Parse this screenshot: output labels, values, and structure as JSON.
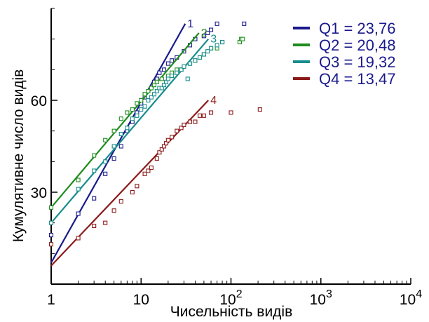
{
  "chart_data": {
    "type": "scatter",
    "title": "",
    "xlabel": "Чисельність видів",
    "ylabel": "Кумулятивне число видів",
    "x_scale": "log",
    "xlim": [
      1,
      10000
    ],
    "ylim": [
      0,
      90
    ],
    "x_ticks": [
      {
        "value": 1,
        "base": "1",
        "exp": ""
      },
      {
        "value": 10,
        "base": "10",
        "exp": ""
      },
      {
        "value": 100,
        "base": "10",
        "exp": "2"
      },
      {
        "value": 1000,
        "base": "10",
        "exp": "3"
      },
      {
        "value": 10000,
        "base": "10",
        "exp": "4"
      }
    ],
    "y_ticks": [
      30,
      60
    ],
    "legend": {
      "position": "top-right",
      "entries": [
        {
          "label": "Q1 = 23,76",
          "color": "#1a1a8c"
        },
        {
          "label": "Q2 = 20,48",
          "color": "#1e8c1e"
        },
        {
          "label": "Q3 = 19,32",
          "color": "#188c8c"
        },
        {
          "label": "Q4 = 13,47",
          "color": "#8c1a1a"
        }
      ]
    },
    "series": [
      {
        "name": "1",
        "color": "#1a1a8c",
        "fit": {
          "x": [
            1,
            31
          ],
          "y": [
            7,
            85
          ]
        },
        "points": [
          [
            1,
            16
          ],
          [
            2,
            23
          ],
          [
            3,
            28
          ],
          [
            4,
            36
          ],
          [
            5,
            41
          ],
          [
            6,
            45
          ],
          [
            7,
            50
          ],
          [
            8,
            53
          ],
          [
            9,
            56
          ],
          [
            10,
            59
          ],
          [
            11,
            61
          ],
          [
            13,
            64
          ],
          [
            14,
            66
          ],
          [
            15,
            67
          ],
          [
            16,
            69
          ],
          [
            18,
            70
          ],
          [
            20,
            72
          ],
          [
            22,
            73
          ],
          [
            25,
            74
          ],
          [
            30,
            76
          ],
          [
            35,
            78
          ],
          [
            40,
            80
          ],
          [
            50,
            81
          ],
          [
            55,
            82
          ],
          [
            60,
            83
          ],
          [
            70,
            85
          ],
          [
            140,
            85
          ]
        ]
      },
      {
        "name": "2",
        "color": "#1e8c1e",
        "fit": {
          "x": [
            1,
            44
          ],
          "y": [
            25,
            82
          ]
        },
        "points": [
          [
            1,
            25
          ],
          [
            2,
            34
          ],
          [
            3,
            42
          ],
          [
            4,
            47
          ],
          [
            5,
            50
          ],
          [
            6,
            54
          ],
          [
            7,
            56
          ],
          [
            8,
            57
          ],
          [
            9,
            59
          ],
          [
            10,
            60
          ],
          [
            11,
            62
          ],
          [
            12,
            63
          ],
          [
            13,
            64
          ],
          [
            14,
            65
          ],
          [
            15,
            66
          ],
          [
            17,
            67
          ],
          [
            20,
            68
          ],
          [
            22,
            69
          ],
          [
            25,
            70
          ],
          [
            28,
            70
          ],
          [
            30,
            71
          ],
          [
            35,
            72
          ],
          [
            40,
            73
          ],
          [
            45,
            74
          ],
          [
            50,
            75
          ],
          [
            60,
            77
          ],
          [
            70,
            77
          ],
          [
            80,
            79
          ],
          [
            125,
            79
          ],
          [
            130,
            80
          ],
          [
            135,
            80
          ]
        ]
      },
      {
        "name": "3",
        "color": "#188c8c",
        "fit": {
          "x": [
            1,
            56
          ],
          "y": [
            20,
            80
          ]
        },
        "points": [
          [
            1,
            20
          ],
          [
            2,
            31
          ],
          [
            3,
            37
          ],
          [
            4,
            40
          ],
          [
            5,
            45
          ],
          [
            6,
            49
          ],
          [
            7,
            51
          ],
          [
            8,
            54
          ],
          [
            9,
            55
          ],
          [
            10,
            57
          ],
          [
            11,
            58
          ],
          [
            12,
            60
          ],
          [
            13,
            61
          ],
          [
            14,
            62
          ],
          [
            15,
            63
          ],
          [
            16,
            64
          ],
          [
            17,
            64
          ],
          [
            18,
            65
          ],
          [
            19,
            66
          ],
          [
            20,
            67
          ],
          [
            22,
            68
          ],
          [
            25,
            69
          ],
          [
            28,
            70
          ],
          [
            30,
            71
          ],
          [
            33,
            67
          ],
          [
            35,
            72
          ],
          [
            40,
            73
          ],
          [
            45,
            74
          ],
          [
            50,
            75
          ],
          [
            55,
            76
          ],
          [
            60,
            77
          ],
          [
            70,
            78
          ],
          [
            80,
            79
          ]
        ]
      },
      {
        "name": "4",
        "color": "#8c1a1a",
        "fit": {
          "x": [
            1,
            56
          ],
          "y": [
            6,
            60
          ]
        },
        "points": [
          [
            1,
            13
          ],
          [
            2,
            15
          ],
          [
            3,
            19
          ],
          [
            4,
            20
          ],
          [
            5,
            24
          ],
          [
            6,
            27
          ],
          [
            8,
            30
          ],
          [
            9,
            32
          ],
          [
            11,
            36
          ],
          [
            12,
            37
          ],
          [
            13,
            38
          ],
          [
            15,
            41
          ],
          [
            16,
            43
          ],
          [
            17,
            44
          ],
          [
            18,
            45
          ],
          [
            19,
            46
          ],
          [
            20,
            47
          ],
          [
            22,
            48
          ],
          [
            25,
            50
          ],
          [
            28,
            51
          ],
          [
            30,
            52
          ],
          [
            35,
            53
          ],
          [
            40,
            53
          ],
          [
            45,
            55
          ],
          [
            50,
            55
          ],
          [
            60,
            56
          ],
          [
            100,
            56
          ],
          [
            210,
            57
          ]
        ]
      }
    ]
  }
}
